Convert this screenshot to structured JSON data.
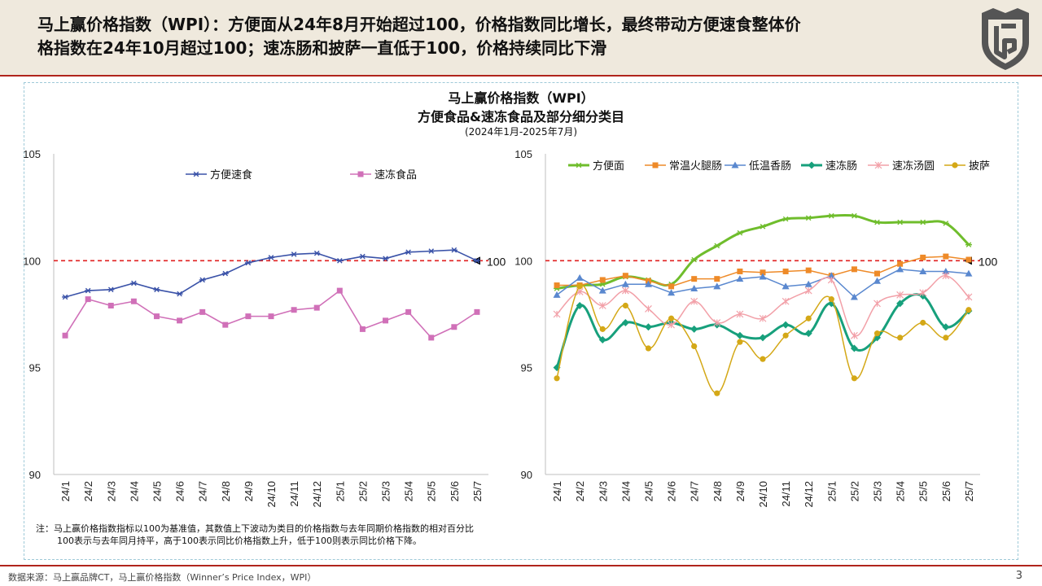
{
  "header": {
    "headline_line1": "马上赢价格指数（WPI）：方便面从24年8月开始超过100，价格指数同比增长，最终带动方便速食整体价",
    "headline_line2": "格指数在24年10月超过100；速冻肠和披萨一直低于100，价格持续同比下滑"
  },
  "chart_title": {
    "line1": "马上赢价格指数（WPI）",
    "line2": "方便食品&速冻食品及部分细分类目",
    "line3": "(2024年1月-2025年7月)"
  },
  "colors": {
    "accent": "#b0241c",
    "reference_line": "#e02020"
  },
  "chart_data": [
    {
      "type": "line",
      "categories": [
        "24/1",
        "24/2",
        "24/3",
        "24/4",
        "24/5",
        "24/6",
        "24/7",
        "24/8",
        "24/9",
        "24/10",
        "24/11",
        "24/12",
        "25/1",
        "25/2",
        "25/3",
        "25/4",
        "25/5",
        "25/6",
        "25/7"
      ],
      "ylim": [
        90,
        105
      ],
      "yticks": [
        90,
        95,
        100,
        105
      ],
      "reference_value": 100,
      "reference_label": "100",
      "legend_position": "top",
      "grid": false,
      "series": [
        {
          "name": "方便速食",
          "color": "#3a52a8",
          "marker": "star",
          "smooth": false,
          "values": [
            98.3,
            98.6,
            98.65,
            98.95,
            98.65,
            98.45,
            99.1,
            99.4,
            99.9,
            100.15,
            100.3,
            100.35,
            100.0,
            100.2,
            100.1,
            100.4,
            100.45,
            100.5,
            100.0
          ]
        },
        {
          "name": "速冻食品",
          "color": "#d070b8",
          "marker": "square",
          "smooth": false,
          "values": [
            96.5,
            98.2,
            97.9,
            98.1,
            97.4,
            97.2,
            97.6,
            97.0,
            97.4,
            97.4,
            97.7,
            97.8,
            98.6,
            96.8,
            97.2,
            97.6,
            96.4,
            96.9,
            97.6
          ]
        }
      ]
    },
    {
      "type": "line",
      "categories": [
        "24/1",
        "24/2",
        "24/3",
        "24/4",
        "24/5",
        "24/6",
        "24/7",
        "24/8",
        "24/9",
        "24/10",
        "24/11",
        "24/12",
        "25/1",
        "25/2",
        "25/3",
        "25/4",
        "25/5",
        "25/6",
        "25/7"
      ],
      "ylim": [
        90,
        105
      ],
      "yticks": [
        90,
        95,
        100,
        105
      ],
      "reference_value": 100,
      "reference_label": "100",
      "legend_position": "top",
      "grid": false,
      "series": [
        {
          "name": "方便面",
          "color": "#6fbd2c",
          "marker": "star",
          "smooth": true,
          "width": 3,
          "values": [
            98.7,
            98.85,
            98.9,
            99.25,
            99.1,
            98.9,
            100.05,
            100.7,
            101.3,
            101.6,
            101.95,
            102.0,
            102.1,
            102.1,
            101.8,
            101.8,
            101.8,
            101.75,
            100.75
          ]
        },
        {
          "name": "常温火腿肠",
          "color": "#ee8a28",
          "marker": "square",
          "smooth": false,
          "width": 1.5,
          "values": [
            98.85,
            98.85,
            99.1,
            99.3,
            99.05,
            98.8,
            99.15,
            99.15,
            99.5,
            99.45,
            99.5,
            99.55,
            99.3,
            99.6,
            99.4,
            99.85,
            100.15,
            100.2,
            100.05
          ]
        },
        {
          "name": "低温香肠",
          "color": "#5a88cf",
          "marker": "triangle",
          "smooth": false,
          "width": 1.5,
          "values": [
            98.4,
            99.2,
            98.6,
            98.9,
            98.9,
            98.5,
            98.7,
            98.8,
            99.15,
            99.25,
            98.8,
            98.9,
            99.3,
            98.3,
            99.05,
            99.6,
            99.5,
            99.5,
            99.4
          ]
        },
        {
          "name": "速冻肠",
          "color": "#17a07c",
          "marker": "diamond",
          "smooth": true,
          "width": 3,
          "values": [
            95.0,
            97.9,
            96.3,
            97.1,
            96.9,
            97.1,
            96.8,
            97.0,
            96.5,
            96.4,
            97.0,
            96.6,
            98.0,
            95.9,
            96.4,
            98.0,
            98.35,
            96.9,
            97.65
          ]
        },
        {
          "name": "速冻汤圆",
          "color": "#f2a0a8",
          "marker": "cross",
          "smooth": true,
          "width": 1.5,
          "values": [
            97.5,
            98.55,
            97.9,
            98.6,
            97.75,
            97.0,
            98.1,
            97.1,
            97.5,
            97.3,
            98.1,
            98.6,
            99.1,
            96.5,
            98.0,
            98.4,
            98.5,
            99.3,
            98.3
          ]
        },
        {
          "name": "披萨",
          "color": "#d4a817",
          "marker": "circle",
          "smooth": true,
          "width": 1.5,
          "values": [
            94.5,
            98.8,
            96.8,
            97.9,
            95.9,
            97.3,
            96.0,
            93.8,
            96.2,
            95.4,
            96.5,
            97.3,
            98.2,
            94.5,
            96.6,
            96.4,
            97.1,
            96.4,
            97.7
          ]
        }
      ]
    }
  ],
  "note": {
    "line1": "注：马上赢价格指数指标以100为基准值，其数值上下波动为类目的价格指数与去年同期价格指数的相对百分比",
    "line2": "100表示与去年同月持平，高于100表示同比价格指数上升，低于100则表示同比价格下降。"
  },
  "footer": {
    "source": "数据来源：马上赢品牌CT，马上赢价格指数（Winner’s  Price Index，WPI）",
    "page_number": "3"
  }
}
